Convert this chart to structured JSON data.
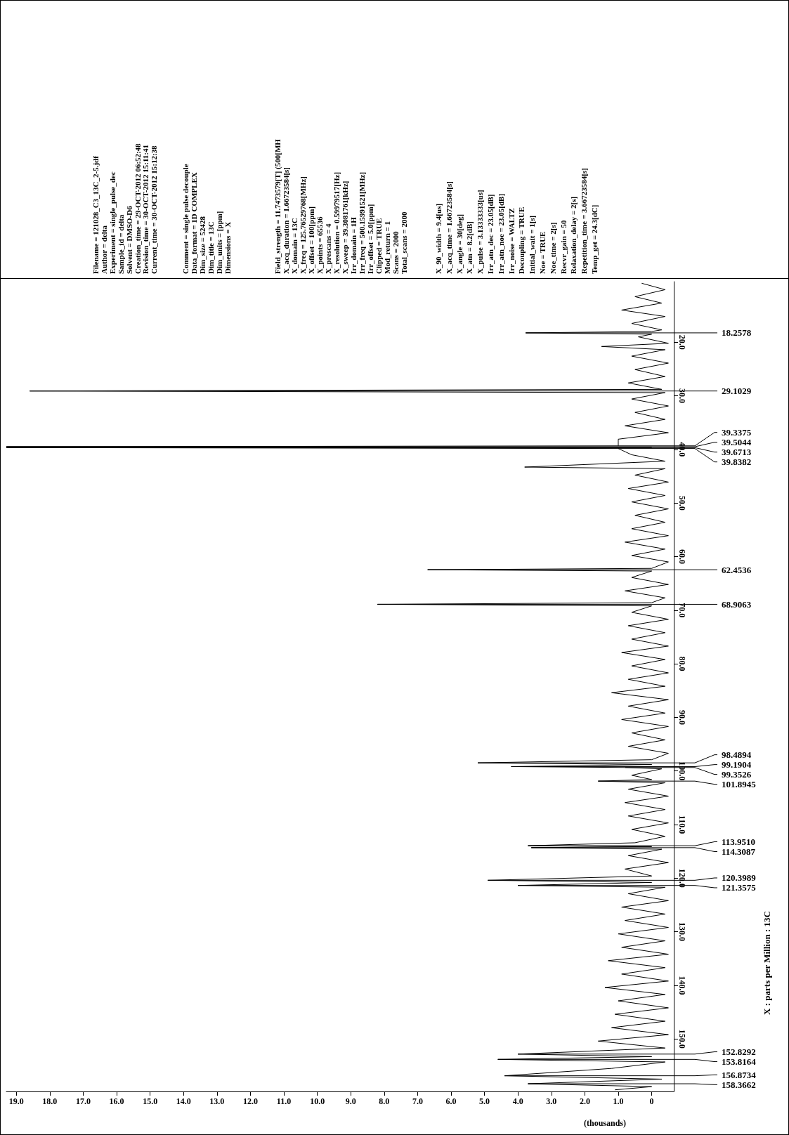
{
  "chart_data": [
    {
      "type": "line",
      "xlabel": "(thousands)",
      "ylabel": "X : parts per Million : 13C",
      "color": "#000000",
      "xlim": [
        19.3,
        -0.66
      ],
      "xticks": [
        0,
        {
          "value": 1,
          "label": "1.0"
        },
        {
          "value": 2,
          "label": "2.0"
        },
        {
          "value": 3,
          "label": "3.0"
        },
        {
          "value": 4,
          "label": "4.0"
        },
        {
          "value": 5,
          "label": "5.0"
        },
        {
          "value": 6,
          "label": "6.0"
        },
        {
          "value": 7,
          "label": "7.0"
        },
        {
          "value": 8,
          "label": "8.0"
        },
        {
          "value": 9,
          "label": "9.0"
        },
        {
          "value": 10,
          "label": "10.0"
        },
        {
          "value": 11,
          "label": "11.0"
        },
        {
          "value": 12,
          "label": "12.0"
        },
        {
          "value": 13,
          "label": "13.0"
        },
        {
          "value": 14,
          "label": "14.0"
        },
        {
          "value": 15,
          "label": "15.0"
        },
        {
          "value": 16,
          "label": "16.0"
        },
        {
          "value": 17,
          "label": "17.0"
        },
        {
          "value": 18,
          "label": "18.0"
        },
        {
          "value": 19,
          "label": "19.0"
        }
      ],
      "ylim": [
        159.8,
        8.7
      ],
      "yticks": [
        {
          "value": 20,
          "label": "20.0"
        },
        {
          "value": 30,
          "label": "30.0"
        },
        {
          "value": 40,
          "label": "40.0"
        },
        {
          "value": 50,
          "label": "50.0"
        },
        {
          "value": 60,
          "label": "60.0"
        },
        {
          "value": 70,
          "label": "70.0"
        },
        {
          "value": 80,
          "label": "80.0"
        },
        {
          "value": 90,
          "label": "90.0"
        },
        {
          "value": 100,
          "label": "100.0"
        },
        {
          "value": 110,
          "label": "110.0"
        },
        {
          "value": 120,
          "label": "120.0"
        },
        {
          "value": 130,
          "label": "130.0"
        },
        {
          "value": 140,
          "label": "140.0"
        },
        {
          "value": 150,
          "label": "150.0"
        }
      ],
      "values": [
        9.0,
        10.2,
        11.5,
        12.7,
        14.0,
        15.2,
        16.5,
        17.7,
        18.0,
        18.2578,
        18.5,
        19.0,
        20.2,
        20.8,
        21.4,
        22.6,
        23.9,
        25.1,
        26.4,
        27.6,
        28.8,
        29.1029,
        29.4,
        30.6,
        31.9,
        33.1,
        34.4,
        35.6,
        36.9,
        38.1,
        39.3375,
        39.5044,
        39.6,
        39.6713,
        39.8382,
        41.0,
        42.2,
        43.3,
        43.6,
        44.8,
        46.1,
        47.3,
        48.6,
        49.8,
        51.1,
        52.3,
        53.6,
        54.8,
        56.1,
        57.3,
        58.6,
        59.8,
        61.0,
        62.2,
        62.4536,
        62.7,
        63.9,
        65.2,
        66.4,
        67.7,
        68.6,
        68.9063,
        69.2,
        70.4,
        71.7,
        72.9,
        74.2,
        75.4,
        76.7,
        77.9,
        79.2,
        80.4,
        81.7,
        82.9,
        84.2,
        85.4,
        86.7,
        87.9,
        89.2,
        90.4,
        91.7,
        92.9,
        94.2,
        95.4,
        96.7,
        97.9,
        98.4894,
        98.8,
        99.1904,
        99.3526,
        99.6,
        100.8,
        101.6,
        101.8945,
        102.2,
        103.4,
        104.7,
        105.9,
        107.2,
        108.4,
        109.7,
        110.9,
        112.2,
        113.4,
        113.951,
        114.1,
        114.3087,
        114.6,
        115.8,
        117.1,
        118.3,
        119.6,
        120.3989,
        120.8,
        121.3575,
        121.7,
        122.9,
        124.2,
        125.4,
        126.7,
        127.9,
        129.2,
        130.4,
        131.7,
        132.9,
        134.2,
        135.4,
        136.7,
        137.9,
        139.2,
        140.4,
        141.7,
        142.9,
        144.2,
        145.4,
        146.7,
        147.9,
        149.2,
        150.4,
        151.7,
        152.8292,
        153.3,
        153.8164,
        154.3,
        155.5,
        156.8734,
        157.5,
        158.3662,
        158.9,
        159.5
      ],
      "x": [
        0.3,
        -0.4,
        0.5,
        -0.3,
        0.9,
        -0.4,
        0.6,
        -0.3,
        0.0,
        3.77,
        0.0,
        0.4,
        -0.5,
        1.5,
        -0.4,
        0.6,
        -0.5,
        0.5,
        -0.4,
        0.7,
        -0.3,
        18.6,
        -0.4,
        0.6,
        -0.5,
        0.5,
        -0.4,
        0.8,
        -0.5,
        1.0,
        1.0,
        19.3,
        0.0,
        19.3,
        1.0,
        0.6,
        -0.4,
        3.8,
        -0.4,
        0.5,
        -0.5,
        0.7,
        -0.4,
        0.6,
        -0.5,
        0.5,
        -0.4,
        0.6,
        -0.5,
        0.8,
        -0.4,
        0.6,
        -0.5,
        0.0,
        6.7,
        0.0,
        0.6,
        -0.5,
        0.8,
        -0.4,
        0.0,
        8.2,
        0.0,
        0.6,
        -0.5,
        0.7,
        -0.4,
        0.6,
        -0.5,
        0.9,
        -0.4,
        0.6,
        -0.5,
        0.7,
        -0.4,
        1.2,
        -0.5,
        0.7,
        -0.4,
        0.9,
        -0.5,
        0.6,
        -0.4,
        0.7,
        -0.5,
        0.0,
        5.2,
        0.0,
        4.2,
        0.8,
        -0.3,
        0.6,
        0.0,
        1.6,
        -0.4,
        0.7,
        -0.5,
        0.8,
        -0.4,
        0.7,
        -0.5,
        0.6,
        -0.4,
        0.5,
        3.7,
        0.0,
        3.6,
        -0.3,
        0.7,
        -0.5,
        0.8,
        0.0,
        4.9,
        0.0,
        4.0,
        -0.4,
        0.7,
        -0.5,
        0.9,
        -0.4,
        0.8,
        -0.5,
        1.0,
        -0.4,
        0.9,
        -0.5,
        1.3,
        -0.4,
        0.9,
        -0.5,
        1.4,
        -0.4,
        1.0,
        -0.5,
        1.1,
        -0.4,
        1.2,
        -0.5,
        1.6,
        -0.4,
        4.0,
        0.0,
        4.6,
        -0.4,
        1.2,
        4.4,
        -0.3,
        3.7,
        0.0,
        1.1
      ],
      "annotations": [
        {
          "text": "18.2578",
          "x": 3.77,
          "y": 18.2578
        },
        {
          "text": "29.1029",
          "x": 18.6,
          "y": 29.1029
        },
        {
          "text": "39.3375",
          "x": 1.0,
          "y": 39.3375
        },
        {
          "text": "39.5044",
          "x": 19.3,
          "y": 39.5044
        },
        {
          "text": "39.6713",
          "x": 19.3,
          "y": 39.6713
        },
        {
          "text": "39.8382",
          "x": 1.0,
          "y": 39.8382
        },
        {
          "text": "62.4536",
          "x": 6.7,
          "y": 62.4536
        },
        {
          "text": "68.9063",
          "x": 8.2,
          "y": 68.9063
        },
        {
          "text": "98.4894",
          "x": 5.2,
          "y": 98.4894
        },
        {
          "text": "99.1904",
          "x": 4.2,
          "y": 99.1904
        },
        {
          "text": "99.3526",
          "x": 0.8,
          "y": 99.3526
        },
        {
          "text": "101.8945",
          "x": 1.6,
          "y": 101.8945
        },
        {
          "text": "113.9510",
          "x": 3.7,
          "y": 113.951
        },
        {
          "text": "114.3087",
          "x": 3.6,
          "y": 114.3087
        },
        {
          "text": "120.3989",
          "x": 4.9,
          "y": 120.3989
        },
        {
          "text": "121.3575",
          "x": 4.0,
          "y": 121.3575
        },
        {
          "text": "152.8292",
          "x": 4.0,
          "y": 152.8292
        },
        {
          "text": "153.8164",
          "x": 4.6,
          "y": 153.8164
        },
        {
          "text": "156.8734",
          "x": 4.4,
          "y": 156.8734
        },
        {
          "text": "158.3662",
          "x": 3.7,
          "y": 158.3662
        }
      ]
    },
    {
      "type": "other",
      "annotations": [
        "Filename = 121028_C3_13C_2-5.jdf",
        "Author = delta",
        "Experiment = single_pulse_dec",
        "Sample_id = delta",
        "Solvent = DMSO-D6",
        "Creation_time = 29-OCT-2012 06:52:48",
        "Revision_time = 30-OCT-2012 15:11:41",
        "Current_time = 30-OCT-2012 15:12:38"
      ]
    },
    {
      "type": "other",
      "annotations": [
        "Comment = single pulse decouple",
        "Data_format = 1D COMPLEX",
        "Dim_size = 52428",
        "Dim_title = 13C",
        "Dim_units = [ppm]",
        "Dimensions = X"
      ]
    },
    {
      "type": "other",
      "annotations": [
        "Field_strength = 11.7473579[T] (500[MH",
        "X_acq_duration = 1.66723584[s]",
        "X_domain = 13C",
        "X_freq = 125.76529768[MHz]",
        "X_offset = 100[ppm]",
        "X_points = 65536",
        "X_prescans = 4",
        "X_resolution = 0.59979517[Hz]",
        "X_sweep = 39.3081761[kHz]",
        "Irr_domain = 1H",
        "Irr_freq = 500.15991521[MHz]",
        "Irr_offset = 5.0[ppm]",
        "Clipped = TRUE",
        "Mod_return = 1",
        "Scans = 2000",
        "Total_scans = 2000"
      ]
    },
    {
      "type": "other",
      "annotations": [
        "X_90_width = 9.4[us]",
        "X_acq_time = 1.66723584[s]",
        "X_angle = 30[deg]",
        "X_atn = 8.2[dB]",
        "X_pulse = 3.13333333[us]",
        "Irr_atn_dec = 23.05[dB]",
        "Irr_atn_noe = 23.05[dB]",
        "Irr_noise = WALTZ",
        "Decoupling = TRUE",
        "Initial_wait = 1[s]",
        "Noe = TRUE",
        "Noe_time = 2[s]",
        "Recvr_gain = 50",
        "Relaxation_delay = 2[s]",
        "Repetition_time = 3.66723584[s]",
        "Temp_get = 24.3[dC]"
      ]
    }
  ]
}
